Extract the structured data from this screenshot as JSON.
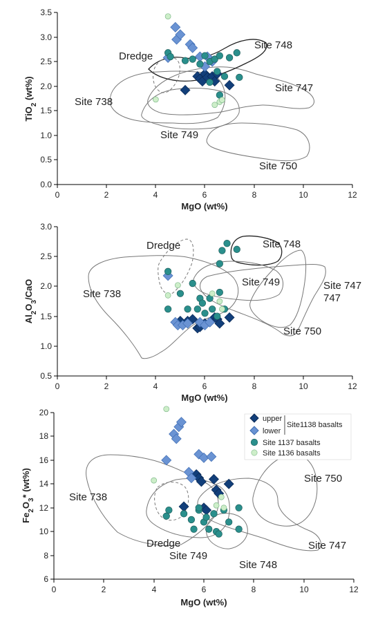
{
  "colors": {
    "upper": "#123f7a",
    "lower": "#6a93d3",
    "site1137": "#2a8f8c",
    "site1136": "#cdeec9",
    "outline": "#777777"
  },
  "legend": {
    "upper": "upper",
    "lower": "lower",
    "group": "Site1138 basalts",
    "site1137": "Site 1137 basalts",
    "site1136": "Site 1136 basalts"
  },
  "chart_data": [
    {
      "type": "scatter",
      "xlabel": "MgO (wt%)",
      "ylabel": "TiO2 (wt%)",
      "xlim": [
        0,
        12
      ],
      "ylim": [
        0,
        3.5
      ],
      "xticks": [
        "0",
        "2",
        "4",
        "6",
        "8",
        "10",
        "12"
      ],
      "yticks": [
        "0.0",
        "0.5",
        "1.0",
        "1.5",
        "2.0",
        "2.5",
        "3.0",
        "3.5"
      ],
      "field_labels": [
        "Dredge",
        "Site 748",
        "Site 747",
        "Site 738",
        "Site 749",
        "Site 750"
      ],
      "series": [
        {
          "name": "upper",
          "points": [
            [
              5.2,
              1.92
            ],
            [
              5.7,
              2.2
            ],
            [
              5.8,
              2.15
            ],
            [
              5.9,
              2.1
            ],
            [
              6.0,
              2.25
            ],
            [
              6.1,
              2.18
            ],
            [
              6.3,
              2.2
            ],
            [
              6.5,
              2.25
            ],
            [
              6.4,
              2.1
            ],
            [
              7.0,
              2.02
            ]
          ]
        },
        {
          "name": "lower",
          "points": [
            [
              4.5,
              2.58
            ],
            [
              4.8,
              3.2
            ],
            [
              4.85,
              2.95
            ],
            [
              5.0,
              3.05
            ],
            [
              5.4,
              2.85
            ],
            [
              5.5,
              2.78
            ],
            [
              5.8,
              2.6
            ],
            [
              6.0,
              2.4
            ],
            [
              6.1,
              2.6
            ],
            [
              6.3,
              2.5
            ]
          ]
        },
        {
          "name": "Site 1137 basalts",
          "points": [
            [
              4.5,
              2.68
            ],
            [
              4.6,
              2.6
            ],
            [
              5.2,
              2.52
            ],
            [
              5.5,
              2.55
            ],
            [
              5.8,
              2.45
            ],
            [
              6.0,
              2.62
            ],
            [
              6.2,
              2.5
            ],
            [
              6.4,
              2.55
            ],
            [
              6.6,
              2.62
            ],
            [
              6.8,
              2.2
            ],
            [
              7.0,
              2.58
            ],
            [
              7.3,
              2.68
            ],
            [
              7.4,
              2.18
            ],
            [
              6.2,
              2.08
            ],
            [
              6.5,
              2.3
            ],
            [
              6.6,
              1.82
            ]
          ]
        },
        {
          "name": "Site 1136 basalts",
          "points": [
            [
              4.5,
              3.42
            ],
            [
              4.0,
              1.73
            ],
            [
              6.4,
              1.62
            ],
            [
              6.6,
              1.68
            ],
            [
              6.7,
              1.72
            ]
          ]
        }
      ]
    },
    {
      "type": "scatter",
      "xlabel": "MgO (wt%)",
      "ylabel": "Al2O3/CaO",
      "xlim": [
        0,
        12
      ],
      "ylim": [
        0.5,
        3.0
      ],
      "xticks": [
        "0",
        "2",
        "4",
        "6",
        "8",
        "10",
        "12"
      ],
      "yticks": [
        "0.5",
        "1.0",
        "1.5",
        "2.0",
        "2.5",
        "3.0"
      ],
      "field_labels": [
        "Dredge",
        "Site 748",
        "Site 738",
        "Site 749",
        "Site 747",
        "Site 750"
      ],
      "series": [
        {
          "name": "upper",
          "points": [
            [
              5.0,
              1.42
            ],
            [
              5.3,
              1.42
            ],
            [
              5.5,
              1.45
            ],
            [
              5.7,
              1.3
            ],
            [
              5.8,
              1.32
            ],
            [
              6.0,
              1.38
            ],
            [
              6.4,
              1.48
            ],
            [
              6.5,
              1.45
            ],
            [
              6.6,
              1.38
            ],
            [
              7.0,
              1.48
            ]
          ]
        },
        {
          "name": "lower",
          "points": [
            [
              4.5,
              2.18
            ],
            [
              4.8,
              1.4
            ],
            [
              4.9,
              1.35
            ],
            [
              5.1,
              1.35
            ],
            [
              5.3,
              1.38
            ],
            [
              5.8,
              1.4
            ],
            [
              6.0,
              1.35
            ],
            [
              6.2,
              1.4
            ]
          ]
        },
        {
          "name": "Site 1137 basalts",
          "points": [
            [
              4.5,
              2.25
            ],
            [
              4.5,
              1.62
            ],
            [
              5.0,
              1.88
            ],
            [
              5.3,
              1.62
            ],
            [
              5.5,
              2.05
            ],
            [
              5.7,
              1.62
            ],
            [
              5.8,
              1.8
            ],
            [
              5.9,
              1.72
            ],
            [
              6.0,
              1.55
            ],
            [
              6.2,
              1.8
            ],
            [
              6.3,
              1.62
            ],
            [
              6.6,
              1.9
            ],
            [
              6.6,
              2.38
            ],
            [
              6.7,
              2.6
            ],
            [
              6.9,
              2.72
            ],
            [
              7.3,
              2.62
            ],
            [
              6.8,
              1.62
            ],
            [
              6.5,
              1.5
            ]
          ]
        },
        {
          "name": "Site 1136 basalts",
          "points": [
            [
              4.5,
              1.85
            ],
            [
              4.9,
              2.02
            ],
            [
              6.3,
              1.88
            ],
            [
              6.6,
              1.75
            ],
            [
              6.7,
              1.62
            ]
          ]
        }
      ]
    },
    {
      "type": "scatter",
      "xlabel": "MgO (wt%)",
      "ylabel": "Fe2O3* (wt%)",
      "xlim": [
        0,
        12
      ],
      "ylim": [
        6,
        20
      ],
      "xticks": [
        "0",
        "2",
        "4",
        "6",
        "8",
        "10",
        "12"
      ],
      "yticks": [
        "6",
        "8",
        "10",
        "12",
        "14",
        "16",
        "18",
        "20"
      ],
      "field_labels": [
        "Site 750",
        "Site 738",
        "Dredge",
        "Site 749",
        "Site 748",
        "Site 747"
      ],
      "series": [
        {
          "name": "upper",
          "points": [
            [
              5.2,
              12.1
            ],
            [
              5.7,
              14.8
            ],
            [
              5.8,
              14.5
            ],
            [
              5.9,
              14.2
            ],
            [
              6.0,
              12.0
            ],
            [
              6.1,
              11.8
            ],
            [
              6.4,
              14.4
            ],
            [
              6.5,
              13.5
            ],
            [
              6.6,
              13.2
            ],
            [
              7.0,
              14.0
            ]
          ]
        },
        {
          "name": "lower",
          "points": [
            [
              4.5,
              16.0
            ],
            [
              4.8,
              18.2
            ],
            [
              4.9,
              17.8
            ],
            [
              5.0,
              18.8
            ],
            [
              5.1,
              19.2
            ],
            [
              5.4,
              15.0
            ],
            [
              5.5,
              14.5
            ],
            [
              5.8,
              16.5
            ],
            [
              6.0,
              16.2
            ],
            [
              6.3,
              16.3
            ]
          ]
        },
        {
          "name": "Site 1137 basalts",
          "points": [
            [
              4.5,
              11.3
            ],
            [
              4.6,
              11.8
            ],
            [
              5.2,
              11.5
            ],
            [
              5.5,
              11.0
            ],
            [
              5.6,
              10.2
            ],
            [
              5.8,
              11.8
            ],
            [
              6.0,
              10.8
            ],
            [
              6.1,
              11.2
            ],
            [
              6.2,
              10.2
            ],
            [
              6.4,
              11.5
            ],
            [
              6.5,
              10.0
            ],
            [
              6.6,
              9.8
            ],
            [
              6.8,
              11.8
            ],
            [
              7.0,
              10.8
            ],
            [
              7.4,
              12.0
            ],
            [
              7.4,
              10.2
            ],
            [
              5.8,
              12.0
            ]
          ]
        },
        {
          "name": "Site 1136 basalts",
          "points": [
            [
              4.5,
              20.3
            ],
            [
              4.0,
              14.3
            ],
            [
              6.5,
              12.2
            ],
            [
              6.7,
              12.9
            ],
            [
              6.8,
              12.0
            ]
          ]
        }
      ]
    }
  ]
}
